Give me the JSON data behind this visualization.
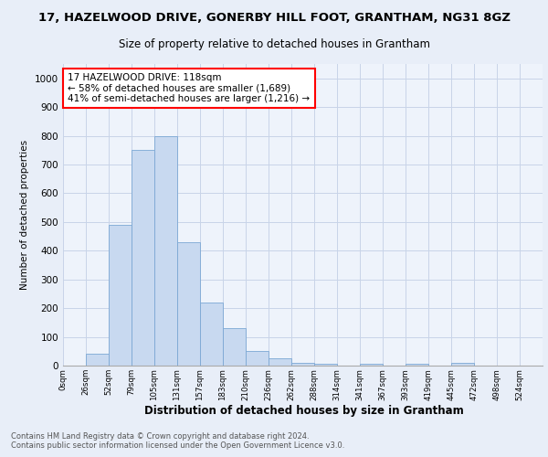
{
  "title1": "17, HAZELWOOD DRIVE, GONERBY HILL FOOT, GRANTHAM, NG31 8GZ",
  "title2": "Size of property relative to detached houses in Grantham",
  "xlabel": "Distribution of detached houses by size in Grantham",
  "ylabel": "Number of detached properties",
  "bin_labels": [
    "0sqm",
    "26sqm",
    "52sqm",
    "79sqm",
    "105sqm",
    "131sqm",
    "157sqm",
    "183sqm",
    "210sqm",
    "236sqm",
    "262sqm",
    "288sqm",
    "314sqm",
    "341sqm",
    "367sqm",
    "393sqm",
    "419sqm",
    "445sqm",
    "472sqm",
    "498sqm",
    "524sqm"
  ],
  "bar_heights": [
    0,
    40,
    490,
    750,
    800,
    430,
    220,
    130,
    50,
    25,
    10,
    5,
    0,
    5,
    0,
    5,
    0,
    10,
    0,
    0,
    0
  ],
  "bar_color": "#c8d9f0",
  "bar_edge_color": "#7ba7d4",
  "annotation_text": "17 HAZELWOOD DRIVE: 118sqm\n← 58% of detached houses are smaller (1,689)\n41% of semi-detached houses are larger (1,216) →",
  "annotation_box_color": "white",
  "annotation_box_edge_color": "red",
  "ylim": [
    0,
    1050
  ],
  "yticks": [
    0,
    100,
    200,
    300,
    400,
    500,
    600,
    700,
    800,
    900,
    1000
  ],
  "footer_line1": "Contains HM Land Registry data © Crown copyright and database right 2024.",
  "footer_line2": "Contains public sector information licensed under the Open Government Licence v3.0.",
  "bg_color": "#e8eef8",
  "plot_bg_color": "#eef3fb",
  "grid_color": "#c8d4e8",
  "title1_fontsize": 9.5,
  "title2_fontsize": 8.5
}
